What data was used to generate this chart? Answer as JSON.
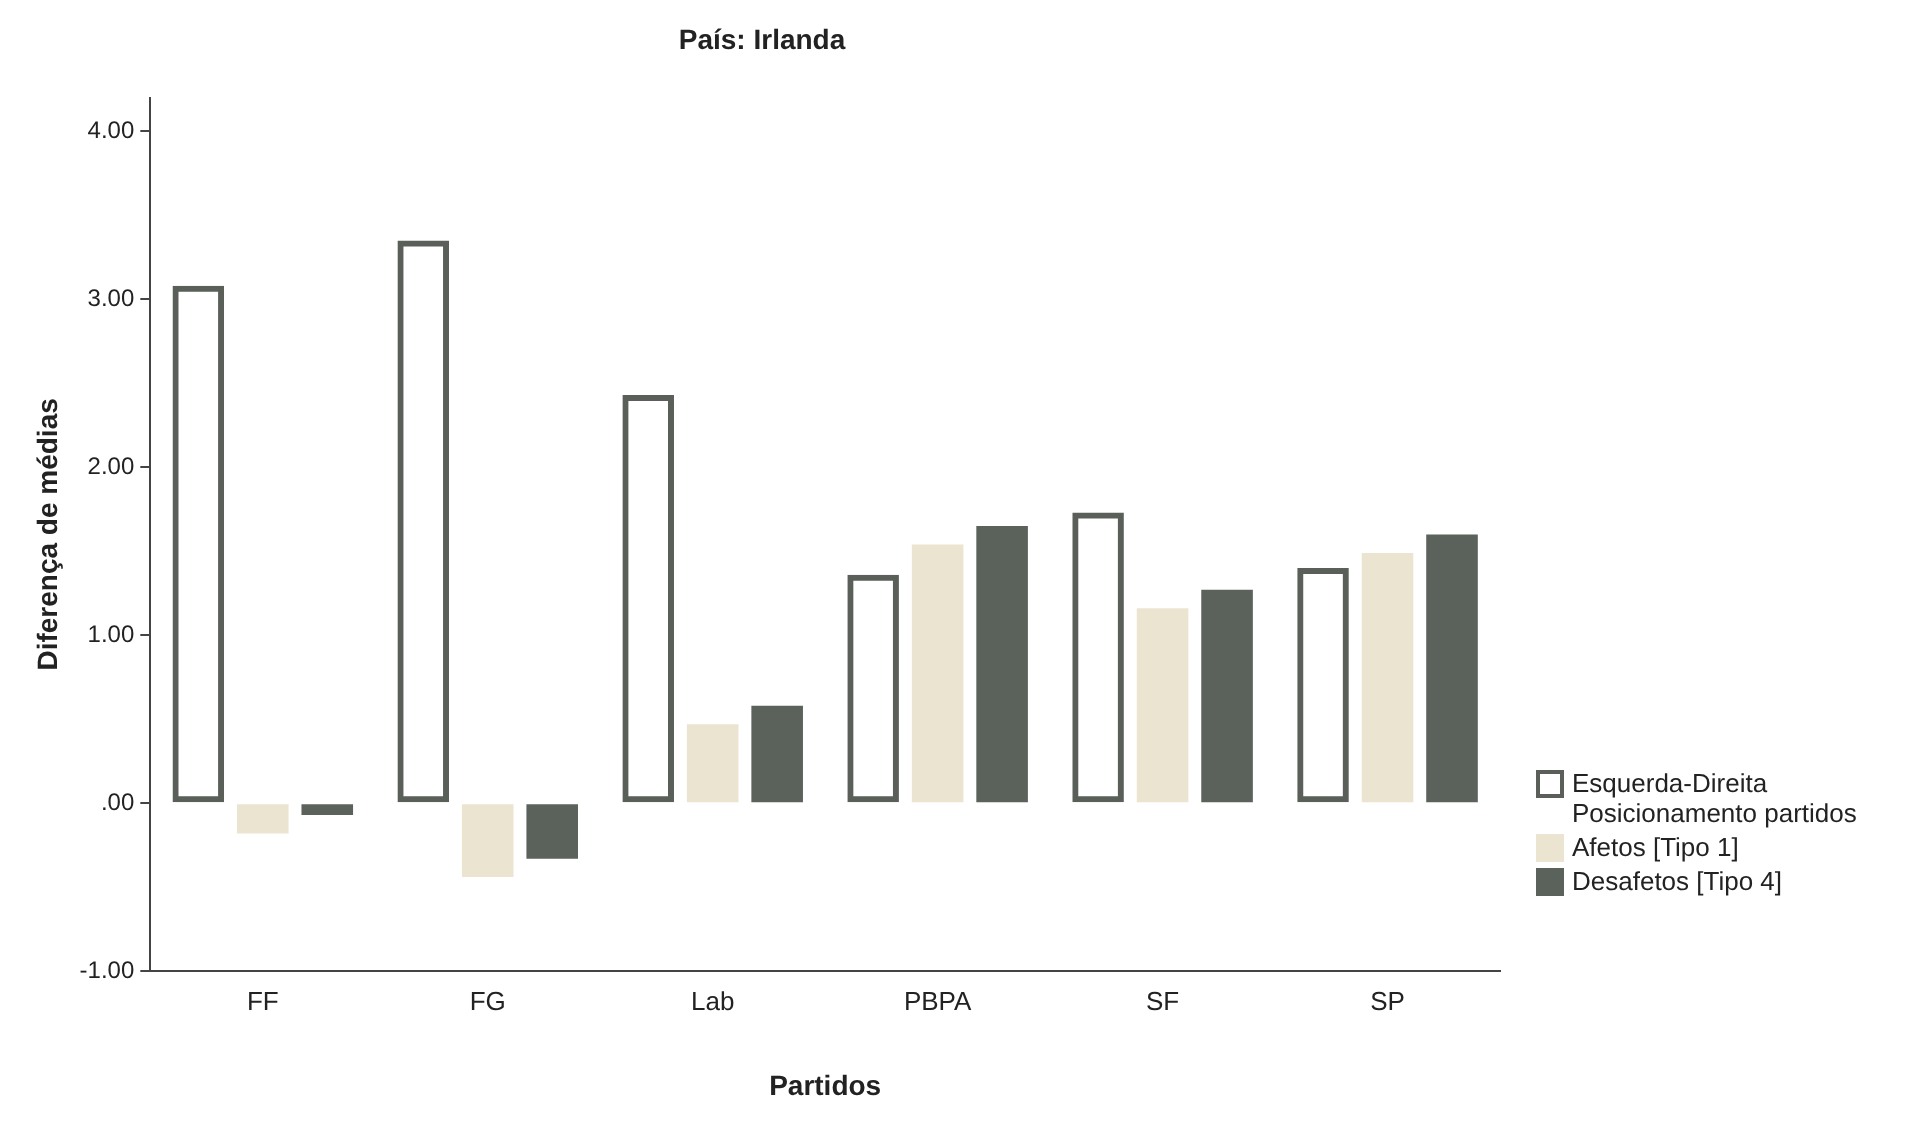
{
  "chart_data": {
    "type": "bar",
    "title": "País: Irlanda",
    "xlabel": "Partidos",
    "ylabel": "Diferença de médias",
    "categories": [
      "FF",
      "FG",
      "Lab",
      "PBPA",
      "SF",
      "SP"
    ],
    "series": [
      {
        "name": "Esquerda-Direita Posicionamento partidos",
        "color": "#5a5f5a",
        "line_style": "solid",
        "values": [
          3.08,
          3.35,
          2.43,
          1.36,
          1.73,
          1.4
        ]
      },
      {
        "name": "Afetos [Tipo 1]",
        "color": "#ebe4d0",
        "values": [
          -0.18,
          -0.44,
          0.47,
          1.54,
          1.16,
          1.49
        ]
      },
      {
        "name": "Desafetos [Tipo 4]",
        "color": "#5b625c",
        "values": [
          -0.07,
          -0.33,
          0.58,
          1.65,
          1.27,
          1.6
        ]
      }
    ],
    "ylim": [
      -1,
      4.2
    ],
    "yticks": [
      {
        "value": -1,
        "label": "-1.00"
      },
      {
        "value": 0,
        "label": ".00"
      },
      {
        "value": 1,
        "label": "1.00"
      },
      {
        "value": 2,
        "label": "2.00"
      },
      {
        "value": 3,
        "label": "3.00"
      },
      {
        "value": 4,
        "label": "4.00"
      }
    ],
    "grid": false,
    "legend": "right"
  }
}
